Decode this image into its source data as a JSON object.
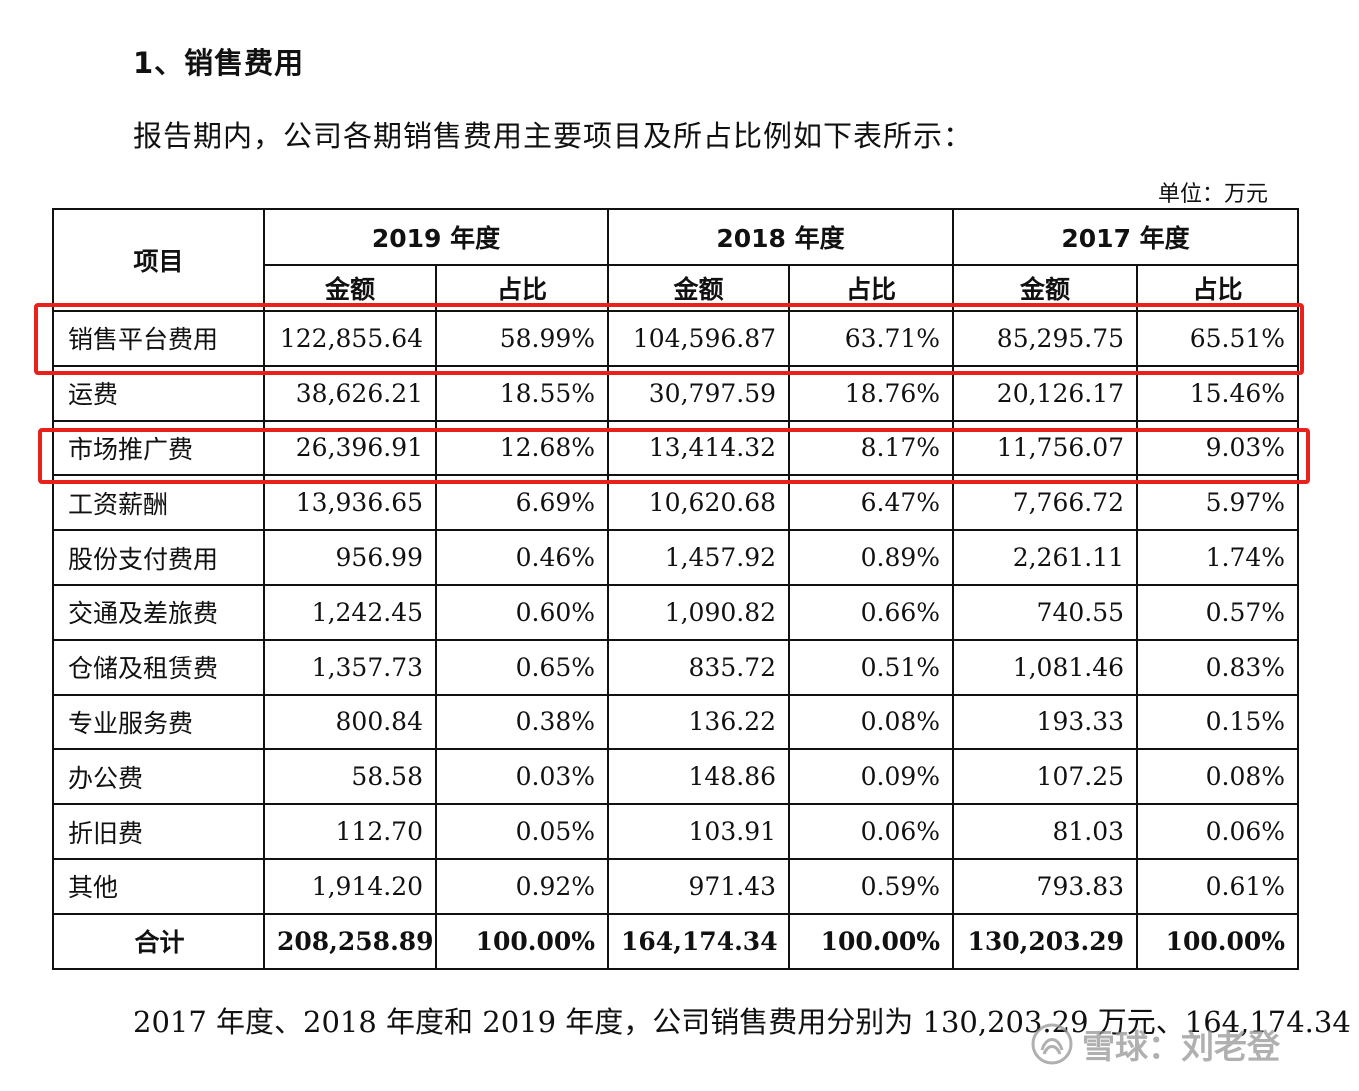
{
  "section_heading": "1、销售费用",
  "intro_text": "报告期内，公司各期销售费用主要项目及所占比例如下表所示：",
  "unit_label": "单位：万元",
  "table": {
    "item_header": "项目",
    "years": [
      "2019 年度",
      "2018 年度",
      "2017 年度"
    ],
    "amount_label": "金额",
    "ratio_label": "占比",
    "rows": [
      {
        "name": "销售平台费用",
        "values": [
          "122,855.64",
          "58.99%",
          "104,596.87",
          "63.71%",
          "85,295.75",
          "65.51%"
        ]
      },
      {
        "name": "运费",
        "values": [
          "38,626.21",
          "18.55%",
          "30,797.59",
          "18.76%",
          "20,126.17",
          "15.46%"
        ]
      },
      {
        "name": "市场推广费",
        "values": [
          "26,396.91",
          "12.68%",
          "13,414.32",
          "8.17%",
          "11,756.07",
          "9.03%"
        ]
      },
      {
        "name": "工资薪酬",
        "values": [
          "13,936.65",
          "6.69%",
          "10,620.68",
          "6.47%",
          "7,766.72",
          "5.97%"
        ]
      },
      {
        "name": "股份支付费用",
        "values": [
          "956.99",
          "0.46%",
          "1,457.92",
          "0.89%",
          "2,261.11",
          "1.74%"
        ]
      },
      {
        "name": "交通及差旅费",
        "values": [
          "1,242.45",
          "0.60%",
          "1,090.82",
          "0.66%",
          "740.55",
          "0.57%"
        ]
      },
      {
        "name": "仓储及租赁费",
        "values": [
          "1,357.73",
          "0.65%",
          "835.72",
          "0.51%",
          "1,081.46",
          "0.83%"
        ]
      },
      {
        "name": "专业服务费",
        "values": [
          "800.84",
          "0.38%",
          "136.22",
          "0.08%",
          "193.33",
          "0.15%"
        ]
      },
      {
        "name": "办公费",
        "values": [
          "58.58",
          "0.03%",
          "148.86",
          "0.09%",
          "107.25",
          "0.08%"
        ]
      },
      {
        "name": "折旧费",
        "values": [
          "112.70",
          "0.05%",
          "103.91",
          "0.06%",
          "81.03",
          "0.06%"
        ]
      },
      {
        "name": "其他",
        "values": [
          "1,914.20",
          "0.92%",
          "971.43",
          "0.59%",
          "793.83",
          "0.61%"
        ]
      }
    ],
    "total": {
      "name": "合计",
      "values": [
        "208,258.89",
        "100.00%",
        "164,174.34",
        "100.00%",
        "130,203.29",
        "100.00%"
      ]
    }
  },
  "footer_text": "2017 年度、2018 年度和 2019 年度，公司销售费用分别为 130,203.29 万元、164,174.34",
  "watermark": {
    "icon": "snowball-logo-icon",
    "text": "雪球：刘老登"
  },
  "highlight_color": "#e8211d"
}
